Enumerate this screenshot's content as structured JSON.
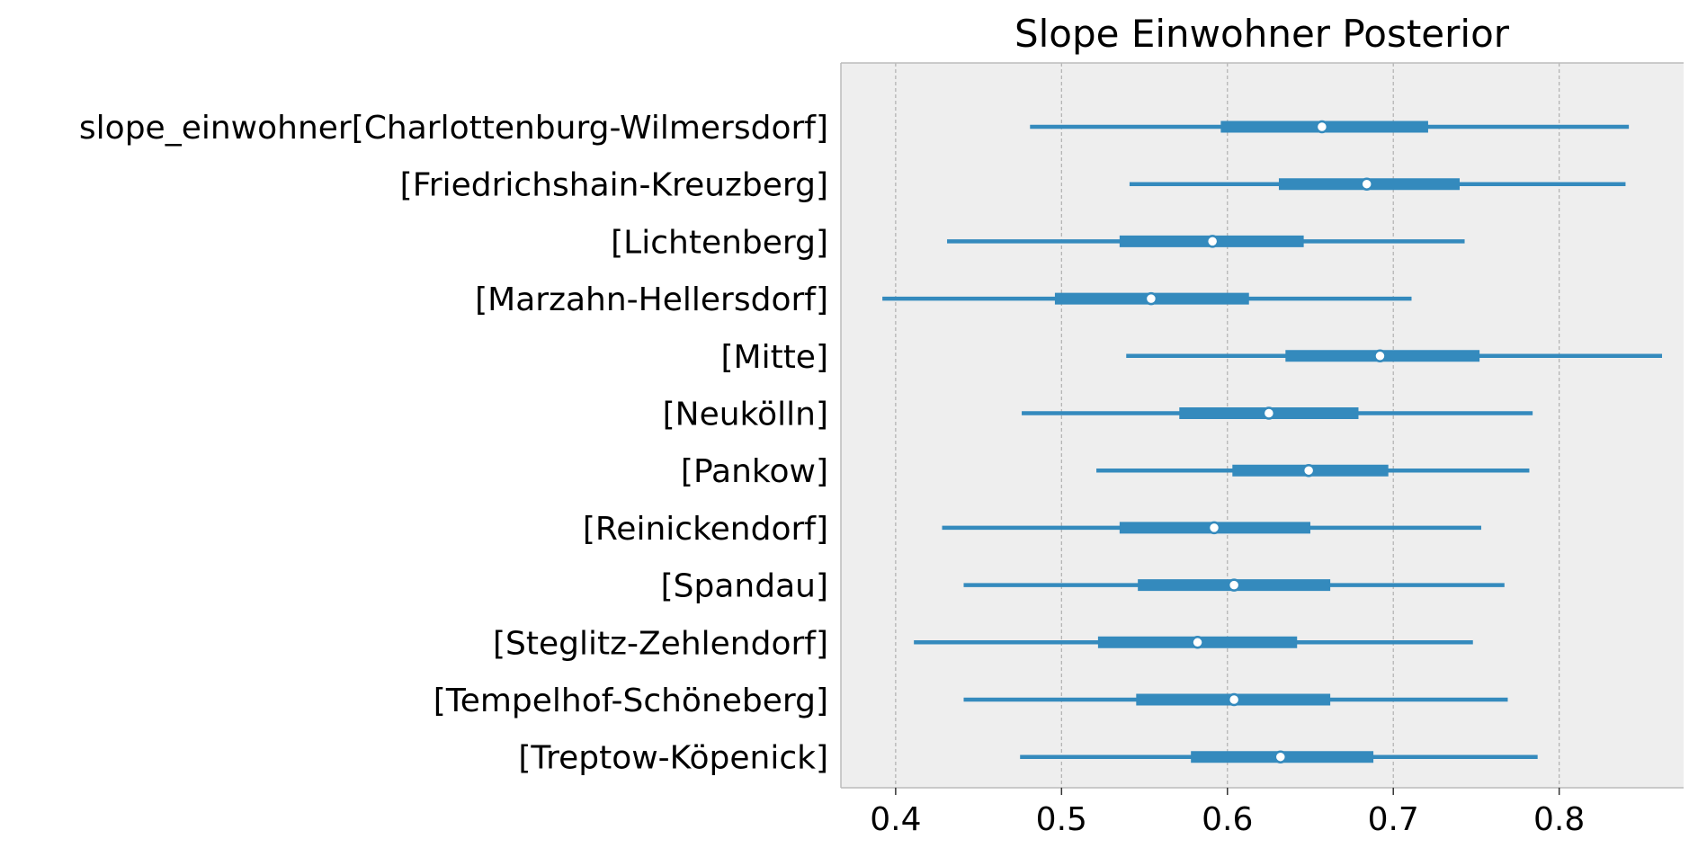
{
  "chart_data": {
    "type": "forest",
    "title": "Slope Einwohner Posterior",
    "xlabel": "",
    "ylabel": "",
    "xlim": [
      0.367,
      0.875
    ],
    "xticks": [
      0.4,
      0.5,
      0.6,
      0.7,
      0.8
    ],
    "xtick_labels": [
      "0.4",
      "0.5",
      "0.6",
      "0.7",
      "0.8"
    ],
    "grid": "vertical-dashed",
    "background": "#eeeeee",
    "line_color": "#348abd",
    "categories": [
      "slope_einwohner[Charlottenburg-Wilmersdorf]",
      "[Friedrichshain-Kreuzberg]",
      "[Lichtenberg]",
      "[Marzahn-Hellersdorf]",
      "[Mitte]",
      "[Neukölln]",
      "[Pankow]",
      "[Reinickendorf]",
      "[Spandau]",
      "[Steglitz-Zehlendorf]",
      "[Tempelhof-Schöneberg]",
      "[Treptow-Köpenick]"
    ],
    "series": [
      {
        "hdi_low": 0.481,
        "iqr_low": 0.596,
        "median": 0.657,
        "iqr_high": 0.721,
        "hdi_high": 0.842
      },
      {
        "hdi_low": 0.541,
        "iqr_low": 0.631,
        "median": 0.684,
        "iqr_high": 0.74,
        "hdi_high": 0.84
      },
      {
        "hdi_low": 0.431,
        "iqr_low": 0.535,
        "median": 0.591,
        "iqr_high": 0.646,
        "hdi_high": 0.743
      },
      {
        "hdi_low": 0.392,
        "iqr_low": 0.496,
        "median": 0.554,
        "iqr_high": 0.613,
        "hdi_high": 0.711
      },
      {
        "hdi_low": 0.539,
        "iqr_low": 0.635,
        "median": 0.692,
        "iqr_high": 0.752,
        "hdi_high": 0.862
      },
      {
        "hdi_low": 0.476,
        "iqr_low": 0.571,
        "median": 0.625,
        "iqr_high": 0.679,
        "hdi_high": 0.784
      },
      {
        "hdi_low": 0.521,
        "iqr_low": 0.603,
        "median": 0.649,
        "iqr_high": 0.697,
        "hdi_high": 0.782
      },
      {
        "hdi_low": 0.428,
        "iqr_low": 0.535,
        "median": 0.592,
        "iqr_high": 0.65,
        "hdi_high": 0.753
      },
      {
        "hdi_low": 0.441,
        "iqr_low": 0.546,
        "median": 0.604,
        "iqr_high": 0.662,
        "hdi_high": 0.767
      },
      {
        "hdi_low": 0.411,
        "iqr_low": 0.522,
        "median": 0.582,
        "iqr_high": 0.642,
        "hdi_high": 0.748
      },
      {
        "hdi_low": 0.441,
        "iqr_low": 0.545,
        "median": 0.604,
        "iqr_high": 0.662,
        "hdi_high": 0.769
      },
      {
        "hdi_low": 0.475,
        "iqr_low": 0.578,
        "median": 0.632,
        "iqr_high": 0.688,
        "hdi_high": 0.787
      }
    ]
  }
}
